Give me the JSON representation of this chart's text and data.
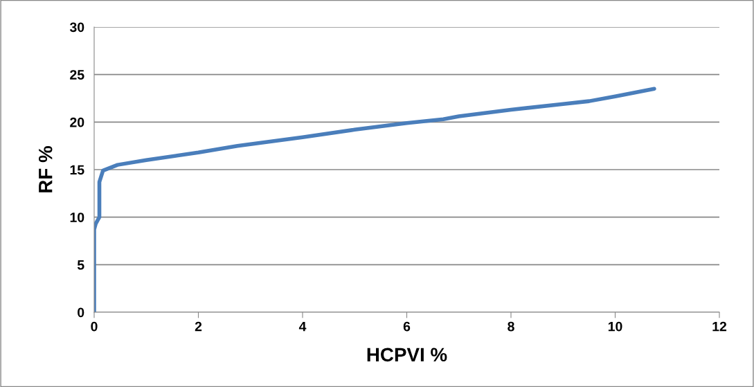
{
  "chart_data": {
    "type": "line",
    "xlabel": "HCPVI %",
    "ylabel": "RF %",
    "series": [
      {
        "color": "#4a7ebb",
        "x": [
          0,
          0,
          0.03,
          0.1,
          0.1,
          0.17,
          0.45,
          1,
          2,
          2.75,
          4,
          5,
          6,
          6.7,
          7,
          8,
          9,
          9.5,
          10,
          10.75
        ],
        "values": [
          0,
          8.7,
          9.3,
          10,
          13.7,
          14.9,
          15.5,
          16.0,
          16.8,
          17.5,
          18.4,
          19.2,
          19.9,
          20.3,
          20.6,
          21.3,
          21.9,
          22.2,
          22.7,
          23.5
        ]
      }
    ],
    "xlim": [
      0,
      12
    ],
    "xticks": [
      0,
      2,
      4,
      6,
      8,
      10,
      12
    ],
    "ylim": [
      0,
      30
    ],
    "yticks": [
      0,
      5,
      10,
      15,
      20,
      25,
      30
    ],
    "grid": "y",
    "legend": false,
    "marker": "none",
    "line_style": "solid"
  }
}
